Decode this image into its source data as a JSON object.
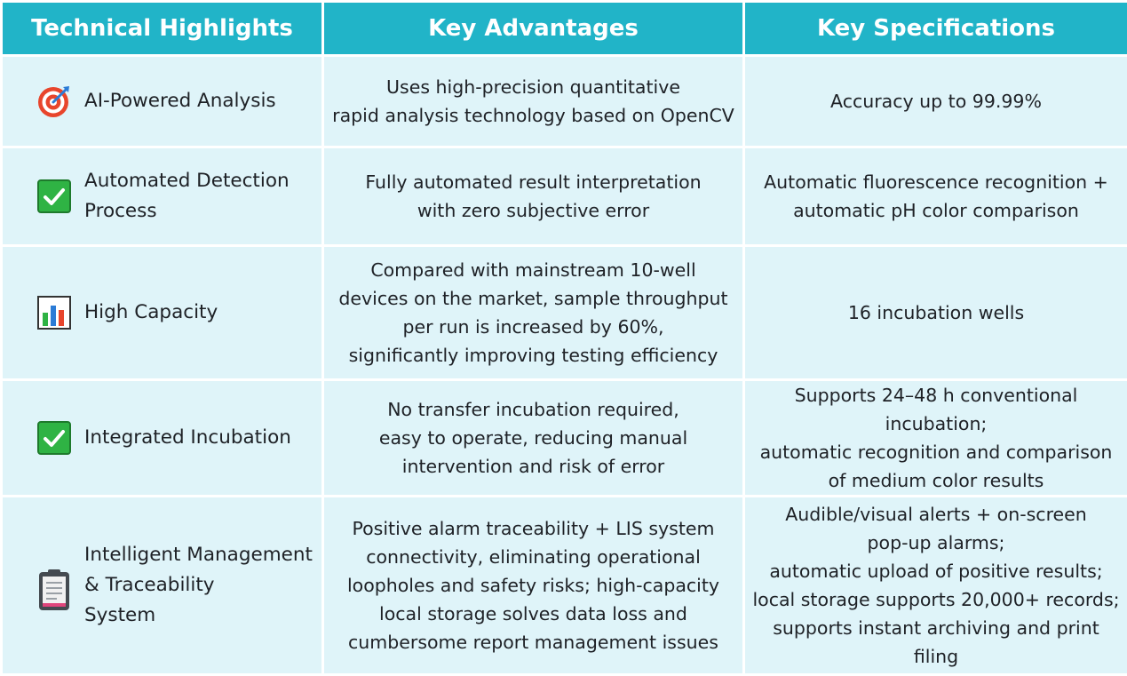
{
  "header": {
    "col1": "Technical Highlights",
    "col2": "Key Advantages",
    "col3": "Key Specifications"
  },
  "rows": [
    {
      "icon": "target-icon",
      "feature": "AI-Powered Analysis",
      "advantage": "Uses high-precision quantitative\nrapid analysis technology based on OpenCV",
      "spec": "Accuracy up to 99.99%"
    },
    {
      "icon": "checkmark-box-icon",
      "feature": "Automated Detection\nProcess",
      "advantage": "Fully automated result interpretation\nwith zero subjective error",
      "spec": "Automatic fluorescence recognition +\nautomatic pH color comparison"
    },
    {
      "icon": "bar-chart-icon",
      "feature": "High Capacity",
      "advantage": "Compared with mainstream 10-well\ndevices on the market, sample throughput\nper run is increased by 60%,\nsignificantly improving testing efficiency",
      "spec": "16 incubation wells"
    },
    {
      "icon": "checkmark-box-icon",
      "feature": "Integrated Incubation",
      "advantage": "No transfer incubation required,\neasy to operate, reducing manual\nintervention and risk of error",
      "spec": "Supports 24–48 h conventional incubation;\nautomatic recognition and comparison\nof medium color results"
    },
    {
      "icon": "clipboard-icon",
      "feature": "Intelligent Management\n& Traceability\nSystem",
      "advantage": "Positive alarm traceability + LIS system\nconnectivity, eliminating operational\nloopholes and safety risks; high-capacity\nlocal storage solves data loss and\ncumbersome report management issues",
      "spec": "Audible/visual alerts + on-screen\npop-up alarms;\nautomatic upload of positive results;\nlocal storage supports 20,000+ records;\nsupports instant archiving and print filing"
    }
  ],
  "colors": {
    "header_bg": "#21b4c8",
    "cell_bg": "#dff4f9",
    "check_green": "#2fb344"
  }
}
